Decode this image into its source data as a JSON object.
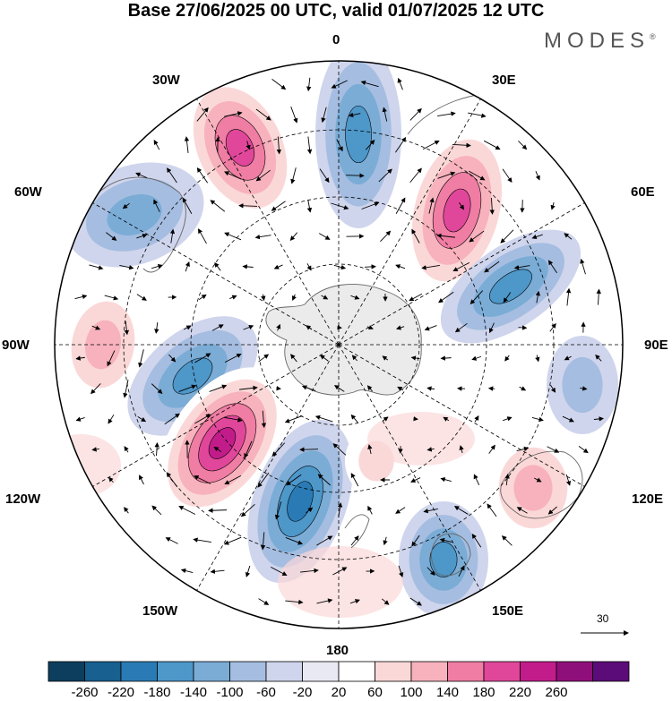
{
  "title": "Base 27/06/2025 00 UTC, valid 01/07/2025 12 UTC",
  "brand": {
    "name": "MODES",
    "mark": "®"
  },
  "map": {
    "projection": "south-polar-stereographic",
    "longitude_labels": {
      "top": "0",
      "top_left": "30W",
      "top_right": "30E",
      "upper_left": "60W",
      "upper_right": "60E",
      "left": "90W",
      "right": "90E",
      "lower_left": "120W",
      "lower_right": "120E",
      "bottom_left": "150W",
      "bottom_right": "150E",
      "bottom": "180"
    },
    "reference_vector": {
      "label": "30"
    },
    "anomaly_centers": [
      {
        "sign": "positive",
        "level": 180,
        "location": "south of Africa, 30W-0"
      },
      {
        "sign": "negative",
        "level": -140,
        "location": "Atlantic sector near 0"
      },
      {
        "sign": "positive",
        "level": 180,
        "location": "Indian Ocean near 40E"
      },
      {
        "sign": "negative",
        "level": -100,
        "location": "South America, 60W"
      },
      {
        "sign": "negative",
        "level": -140,
        "location": "near 70E-80E"
      },
      {
        "sign": "positive",
        "level": 100,
        "location": "east Pacific near 90W"
      },
      {
        "sign": "negative",
        "level": -140,
        "location": "near 100W"
      },
      {
        "sign": "positive",
        "level": 220,
        "location": "south Pacific near 125W"
      },
      {
        "sign": "negative",
        "level": -180,
        "location": "near 160W"
      },
      {
        "sign": "negative",
        "level": -60,
        "location": "near 100E"
      },
      {
        "sign": "positive",
        "level": 100,
        "location": "Australia near 120E"
      },
      {
        "sign": "negative",
        "level": -140,
        "location": "near 150E"
      },
      {
        "sign": "positive",
        "level": 60,
        "location": "near 170E"
      }
    ]
  },
  "colorbar": {
    "ticks": [
      "-260",
      "-220",
      "-180",
      "-140",
      "-100",
      "-60",
      "-20",
      "20",
      "60",
      "100",
      "140",
      "180",
      "220",
      "260"
    ],
    "colors": [
      "#0d3e5e",
      "#17608f",
      "#2a7bb5",
      "#4d97c9",
      "#7aacd6",
      "#a5bde0",
      "#cfd5ec",
      "#e9e9f4",
      "#ffffff",
      "#fbd8d8",
      "#f7b2bd",
      "#f07da3",
      "#e0479a",
      "#c21c8a",
      "#8f0f7a",
      "#5c0c78"
    ]
  }
}
